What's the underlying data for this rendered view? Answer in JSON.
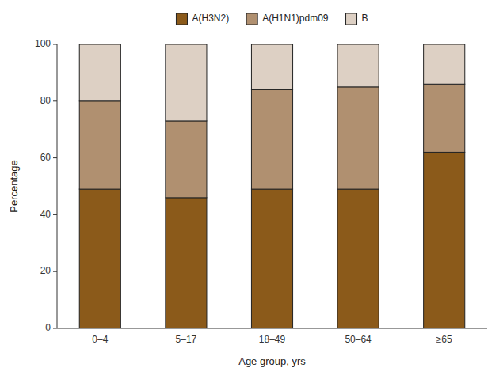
{
  "chart_data": {
    "type": "bar",
    "stacked": true,
    "xlabel": "Age group, yrs",
    "ylabel": "Percentage",
    "categories": [
      "0–4",
      "5–17",
      "18–49",
      "50–64",
      "≥65"
    ],
    "series": [
      {
        "name": "A(H3N2)",
        "color": "#8B5A1A",
        "values": [
          49,
          46,
          49,
          49,
          62
        ]
      },
      {
        "name": "A(H1N1)pdm09",
        "color": "#B09070",
        "values": [
          31,
          27,
          35,
          36,
          24
        ]
      },
      {
        "name": "B",
        "color": "#DDD0C4",
        "values": [
          20,
          27,
          16,
          15,
          14
        ]
      }
    ],
    "ylim": [
      0,
      100
    ],
    "yticks": [
      0,
      20,
      40,
      60,
      80,
      100
    ],
    "grid": false,
    "legend": "top"
  }
}
